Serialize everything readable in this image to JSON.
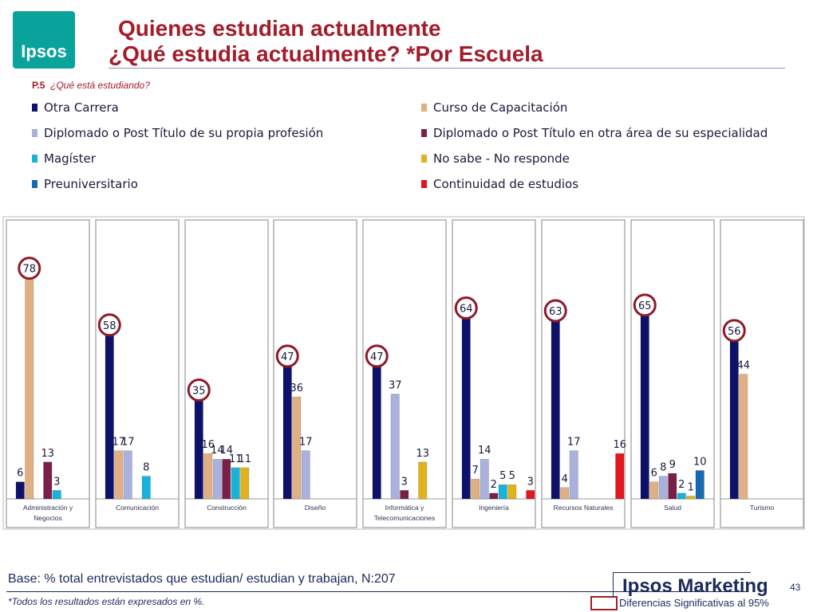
{
  "header": {
    "logo_text": "Ipsos",
    "title_line1": "Quienes estudian actualmente",
    "title_line2": "¿Qué estudia actualmente? *Por Escuela",
    "question_code": "P.5",
    "question_text": "¿Qué está estudiando?"
  },
  "colors": {
    "title": "#a31c2a",
    "logo_bg": "#0aa39c",
    "significance_circle": "#8e1b2a"
  },
  "chart_data": {
    "type": "bar",
    "ylim": [
      0,
      90
    ],
    "grid": false,
    "legend_position": "top",
    "categories": [
      [
        "Administración y",
        "Negocios"
      ],
      [
        "Comunicación"
      ],
      [
        "Construcción"
      ],
      [
        "Diseño"
      ],
      [
        "Informática y",
        "Telecomunicaciones"
      ],
      [
        "Ingeniería"
      ],
      [
        "Recursos Naturales"
      ],
      [
        "Salud"
      ],
      [
        "Turismo"
      ]
    ],
    "series": [
      {
        "name": "Otra Carrera",
        "color": "#0d1169",
        "values": [
          6,
          58,
          35,
          47,
          47,
          64,
          63,
          65,
          56
        ]
      },
      {
        "name": "Curso de Capacitación",
        "color": "#e0b083",
        "values": [
          78,
          17,
          16,
          36,
          null,
          7,
          4,
          6,
          44
        ]
      },
      {
        "name": "Diplomado o Post Título de su propia profesión",
        "color": "#aab1dc",
        "values": [
          null,
          17,
          14,
          17,
          37,
          14,
          17,
          8,
          null
        ]
      },
      {
        "name": "Diplomado o Post Título en otra área de su especialidad",
        "color": "#7a1f48",
        "values": [
          13,
          null,
          14,
          null,
          3,
          2,
          null,
          9,
          null
        ]
      },
      {
        "name": "Magíster",
        "color": "#19b2d8",
        "values": [
          3,
          8,
          11,
          null,
          null,
          5,
          null,
          2,
          null
        ]
      },
      {
        "name": "No sabe - No responde",
        "color": "#e0b21c",
        "values": [
          null,
          null,
          11,
          null,
          13,
          5,
          null,
          1,
          null
        ]
      },
      {
        "name": "Preuniversitario",
        "color": "#1769b3",
        "values": [
          null,
          null,
          null,
          null,
          null,
          null,
          null,
          10,
          null
        ]
      },
      {
        "name": "Continuidad de estudios",
        "color": "#e3171f",
        "values": [
          null,
          null,
          null,
          null,
          null,
          3,
          16,
          null,
          null
        ]
      }
    ],
    "significant_highlights": [
      {
        "category": 0,
        "series": 1
      },
      {
        "category": 1,
        "series": 0
      },
      {
        "category": 2,
        "series": 0
      },
      {
        "category": 3,
        "series": 0
      },
      {
        "category": 4,
        "series": 0
      },
      {
        "category": 5,
        "series": 0
      },
      {
        "category": 6,
        "series": 0
      },
      {
        "category": 7,
        "series": 0
      },
      {
        "category": 8,
        "series": 0
      }
    ]
  },
  "footer": {
    "base": "Base: % total entrevistados que estudian/ estudian y trabajan, N:207",
    "note": "*Todos los resultados están expresados en %.",
    "brand": "Ipsos Marketing",
    "page_number": "43",
    "significance_label": "Diferencias Significativas al 95%"
  }
}
